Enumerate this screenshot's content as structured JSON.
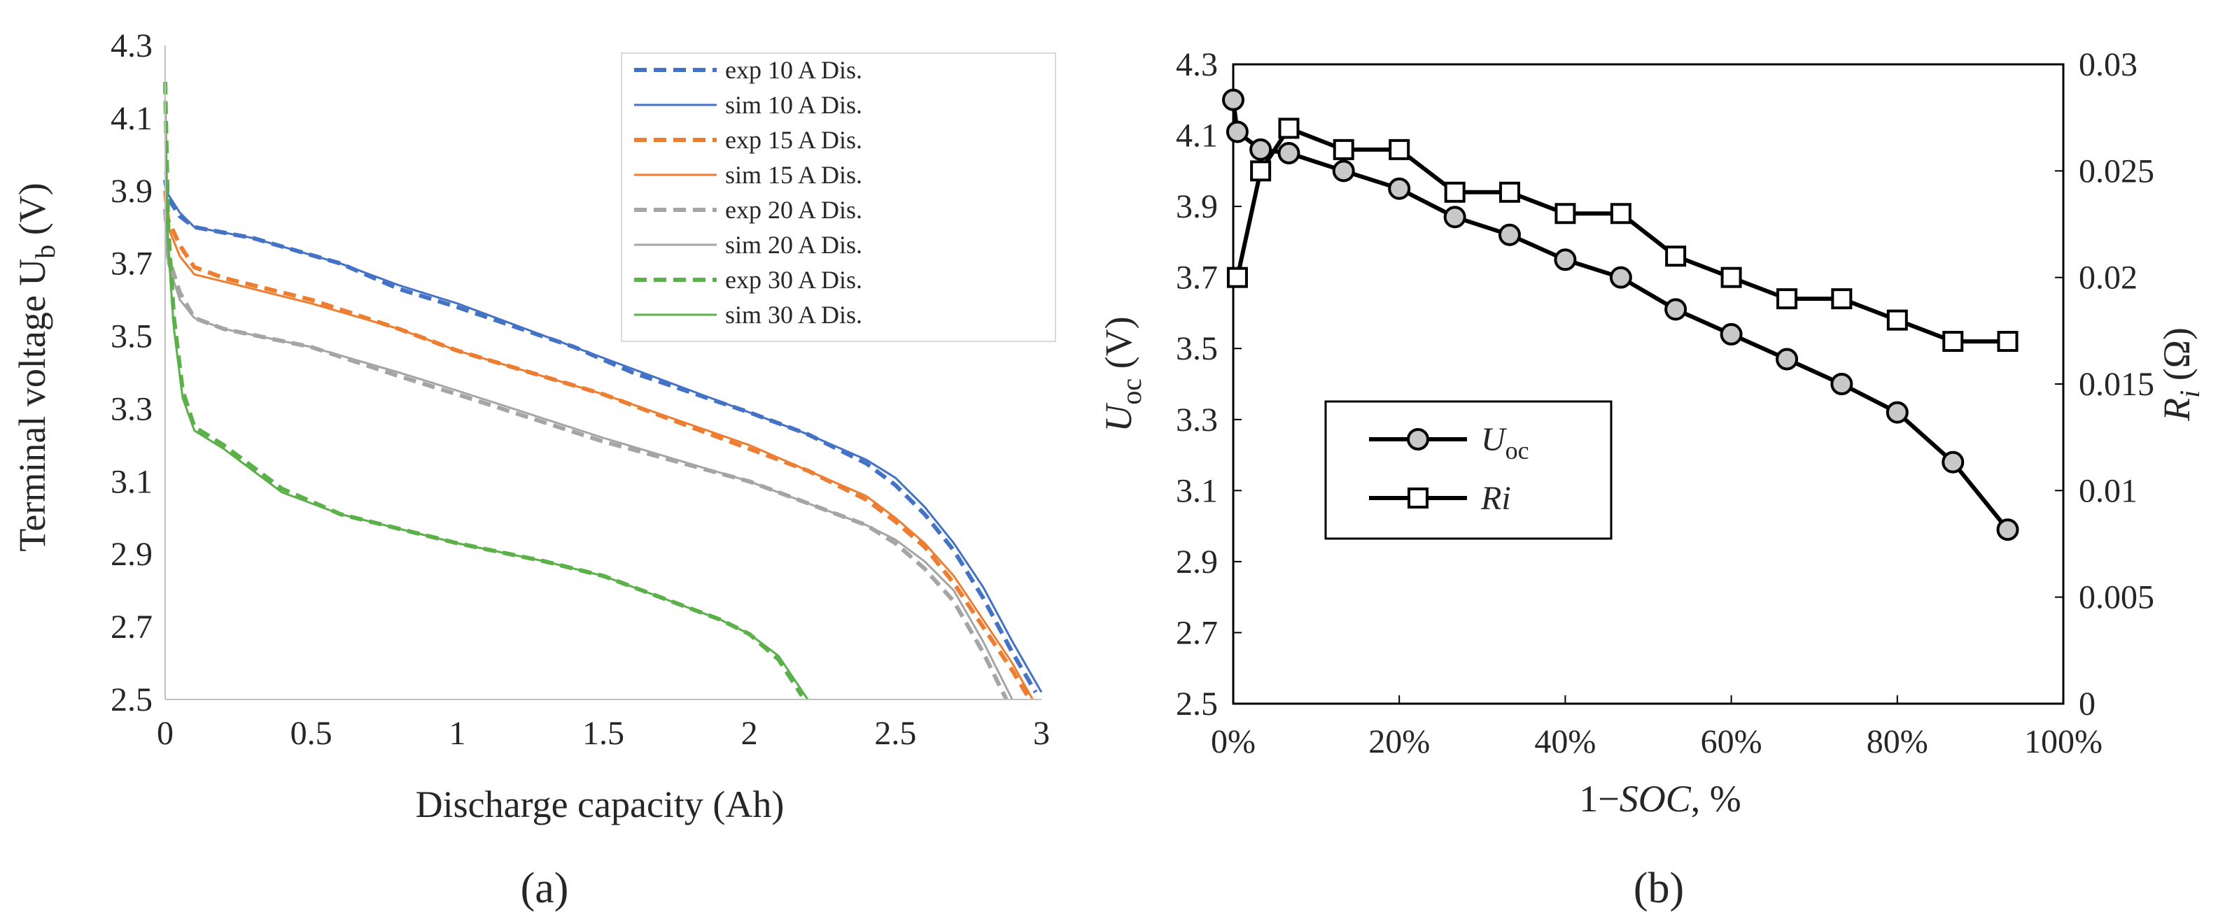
{
  "chart_data": [
    {
      "type": "line",
      "panel_label": "(a)",
      "xlabel": "Discharge capacity (Ah)",
      "ylabel_main": "Terminal voltage U",
      "ylabel_sub": "b",
      "ylabel_unit": " (V)",
      "xlim": [
        0,
        3
      ],
      "ylim": [
        2.5,
        4.3
      ],
      "x_ticks": [
        "0",
        "0.5",
        "1",
        "1.5",
        "2",
        "2.5",
        "3"
      ],
      "y_ticks": [
        "2.5",
        "2.7",
        "2.9",
        "3.1",
        "3.3",
        "3.5",
        "3.7",
        "3.9",
        "4.1",
        "4.3"
      ],
      "grid": false,
      "legend_position": "top-right",
      "colors": {
        "blue": "#4472c4",
        "orange": "#ed7d31",
        "gray": "#a5a5a5",
        "green": "#5cb04a"
      },
      "series": [
        {
          "name": "exp 10 A Dis.",
          "color": "#4472c4",
          "dash": "dashed",
          "x": [
            0,
            0.01,
            0.05,
            0.1,
            0.3,
            0.6,
            0.8,
            1.0,
            1.4,
            1.6,
            2.0,
            2.2,
            2.4,
            2.5,
            2.6,
            2.7,
            2.8,
            2.9,
            2.98
          ],
          "y": [
            3.93,
            3.88,
            3.83,
            3.8,
            3.77,
            3.7,
            3.63,
            3.58,
            3.47,
            3.4,
            3.29,
            3.23,
            3.15,
            3.09,
            3.01,
            2.91,
            2.78,
            2.63,
            2.52
          ]
        },
        {
          "name": "sim 10 A Dis.",
          "color": "#4472c4",
          "dash": "solid",
          "x": [
            0,
            0.01,
            0.05,
            0.1,
            0.3,
            0.6,
            0.8,
            1.0,
            1.4,
            1.6,
            2.0,
            2.2,
            2.4,
            2.5,
            2.6,
            2.7,
            2.8,
            2.9,
            3.0
          ],
          "y": [
            3.95,
            3.89,
            3.84,
            3.8,
            3.77,
            3.7,
            3.64,
            3.59,
            3.47,
            3.41,
            3.29,
            3.23,
            3.16,
            3.11,
            3.03,
            2.93,
            2.81,
            2.66,
            2.52
          ]
        },
        {
          "name": "exp 15 A Dis.",
          "color": "#ed7d31",
          "dash": "dashed",
          "x": [
            0,
            0.01,
            0.05,
            0.1,
            0.2,
            0.5,
            0.8,
            1.0,
            1.5,
            2.0,
            2.2,
            2.4,
            2.5,
            2.6,
            2.7,
            2.8,
            2.9,
            2.96
          ],
          "y": [
            3.9,
            3.82,
            3.75,
            3.69,
            3.66,
            3.6,
            3.52,
            3.46,
            3.34,
            3.19,
            3.13,
            3.05,
            2.99,
            2.92,
            2.82,
            2.7,
            2.58,
            2.5
          ]
        },
        {
          "name": "sim 15 A Dis.",
          "color": "#ed7d31",
          "dash": "solid",
          "x": [
            0,
            0.01,
            0.05,
            0.1,
            0.2,
            0.5,
            0.8,
            1.0,
            1.5,
            2.0,
            2.2,
            2.4,
            2.5,
            2.6,
            2.7,
            2.8,
            2.9,
            2.97
          ],
          "y": [
            3.88,
            3.8,
            3.72,
            3.67,
            3.65,
            3.59,
            3.52,
            3.46,
            3.34,
            3.2,
            3.13,
            3.06,
            3.0,
            2.93,
            2.84,
            2.72,
            2.6,
            2.5
          ]
        },
        {
          "name": "exp 20 A Dis.",
          "color": "#a5a5a5",
          "dash": "dashed",
          "x": [
            0,
            0.01,
            0.05,
            0.1,
            0.2,
            0.5,
            0.8,
            1.0,
            1.5,
            2.0,
            2.2,
            2.4,
            2.5,
            2.6,
            2.7,
            2.8,
            2.88
          ],
          "y": [
            3.85,
            3.72,
            3.62,
            3.55,
            3.52,
            3.47,
            3.39,
            3.34,
            3.21,
            3.1,
            3.04,
            2.98,
            2.93,
            2.86,
            2.77,
            2.63,
            2.5
          ]
        },
        {
          "name": "sim 20 A Dis.",
          "color": "#a5a5a5",
          "dash": "solid",
          "x": [
            0,
            0.01,
            0.05,
            0.1,
            0.2,
            0.5,
            0.8,
            1.0,
            1.5,
            2.0,
            2.2,
            2.4,
            2.5,
            2.6,
            2.7,
            2.8,
            2.9
          ],
          "y": [
            3.82,
            3.7,
            3.6,
            3.55,
            3.52,
            3.47,
            3.4,
            3.35,
            3.22,
            3.1,
            3.04,
            2.98,
            2.94,
            2.88,
            2.8,
            2.66,
            2.5
          ]
        },
        {
          "name": "exp 30 A Dis.",
          "color": "#5cb04a",
          "dash": "dashed",
          "x": [
            0,
            0.01,
            0.03,
            0.06,
            0.1,
            0.2,
            0.4,
            0.6,
            0.8,
            1.0,
            1.3,
            1.5,
            1.7,
            1.9,
            2.0,
            2.1,
            2.18
          ],
          "y": [
            4.2,
            3.8,
            3.55,
            3.35,
            3.25,
            3.2,
            3.08,
            3.01,
            2.97,
            2.93,
            2.88,
            2.84,
            2.78,
            2.72,
            2.68,
            2.61,
            2.51
          ]
        },
        {
          "name": "sim 30 A Dis.",
          "color": "#5cb04a",
          "dash": "solid",
          "x": [
            0,
            0.01,
            0.03,
            0.06,
            0.1,
            0.2,
            0.4,
            0.6,
            0.8,
            1.0,
            1.3,
            1.5,
            1.7,
            1.9,
            2.0,
            2.1,
            2.2
          ],
          "y": [
            4.15,
            3.75,
            3.52,
            3.33,
            3.24,
            3.19,
            3.07,
            3.01,
            2.97,
            2.93,
            2.88,
            2.84,
            2.78,
            2.72,
            2.68,
            2.62,
            2.5
          ]
        }
      ]
    },
    {
      "type": "line",
      "panel_label": "(b)",
      "xlabel_prefix": "1−",
      "xlabel_italic": "SOC",
      "xlabel_suffix": ", %",
      "ylabel_left_main": "U",
      "ylabel_left_sub": "oc",
      "ylabel_left_unit": " (V)",
      "ylabel_right_main": "R",
      "ylabel_right_sub": "i",
      "ylabel_right_unit": " (Ω)",
      "xlim": [
        0,
        100
      ],
      "ylim_left": [
        2.5,
        4.3
      ],
      "ylim_right": [
        0,
        0.03
      ],
      "x_ticks": [
        "0%",
        "20%",
        "40%",
        "60%",
        "80%",
        "100%"
      ],
      "y_ticks_left": [
        "2.5",
        "2.7",
        "2.9",
        "3.1",
        "3.3",
        "3.5",
        "3.7",
        "3.9",
        "4.1",
        "4.3"
      ],
      "y_ticks_right": [
        "0",
        "0.005",
        "0.01",
        "0.015",
        "0.02",
        "0.025",
        "0.03"
      ],
      "grid": false,
      "legend_position": "center-left",
      "series": [
        {
          "name_main": "U",
          "name_sub": "oc",
          "axis": "left",
          "marker": "circle",
          "x": [
            0,
            0.5,
            3.3,
            6.7,
            13.3,
            20,
            26.7,
            33.3,
            40,
            46.7,
            53.3,
            60,
            66.7,
            73.3,
            80,
            86.7,
            93.3
          ],
          "y": [
            4.2,
            4.11,
            4.06,
            4.05,
            4.0,
            3.95,
            3.87,
            3.82,
            3.75,
            3.7,
            3.61,
            3.54,
            3.47,
            3.4,
            3.32,
            3.18,
            2.99
          ]
        },
        {
          "name": "Ri",
          "axis": "right",
          "marker": "square",
          "x": [
            0.5,
            3.3,
            6.7,
            13.3,
            20,
            26.7,
            33.3,
            40,
            46.7,
            53.3,
            60,
            66.7,
            73.3,
            80,
            86.7,
            93.3
          ],
          "y": [
            0.02,
            0.025,
            0.027,
            0.026,
            0.026,
            0.024,
            0.024,
            0.023,
            0.023,
            0.021,
            0.02,
            0.019,
            0.019,
            0.018,
            0.017,
            0.017
          ]
        }
      ]
    }
  ]
}
